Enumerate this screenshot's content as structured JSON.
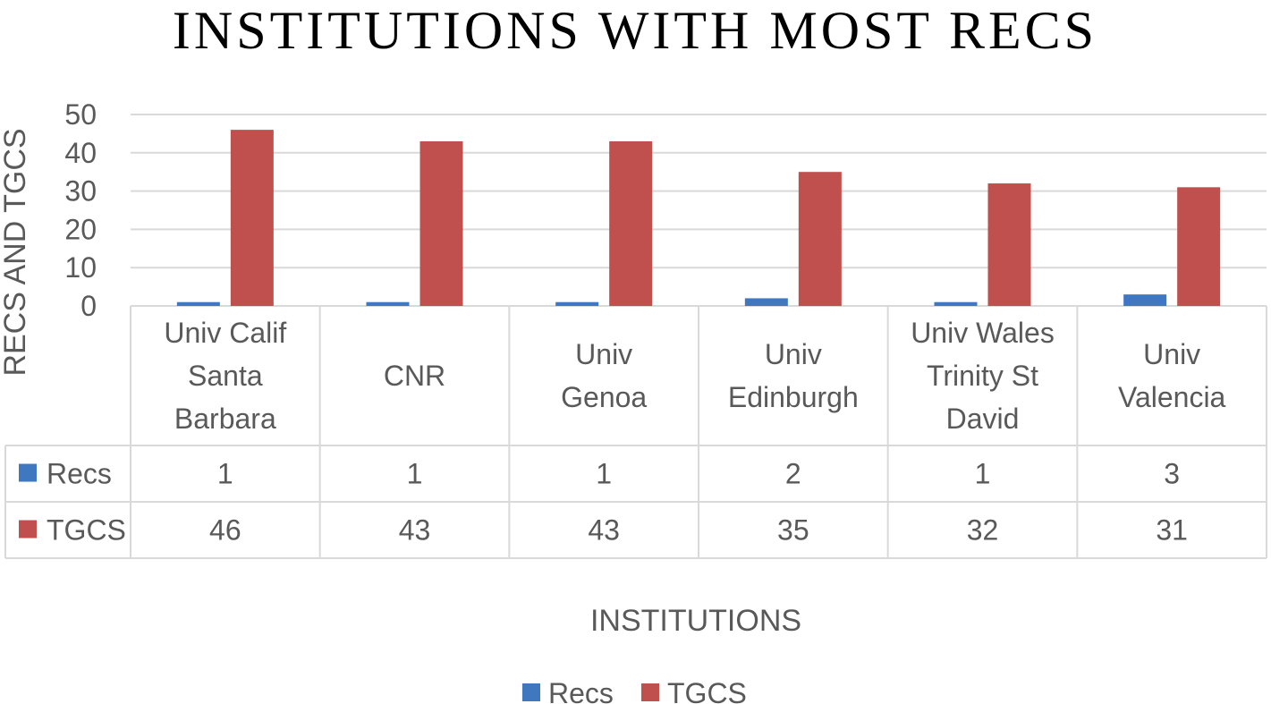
{
  "chart_data": {
    "type": "bar",
    "title": "INSTITUTIONS WITH MOST RECS",
    "xlabel": "INSTITUTIONS",
    "ylabel": "RECS AND TGCS",
    "ylim": [
      0,
      50
    ],
    "yticks": [
      0,
      10,
      20,
      30,
      40,
      50
    ],
    "grid": true,
    "legend_position": "bottom",
    "data_table": true,
    "categories": [
      [
        "Univ Calif",
        "Santa",
        "Barbara"
      ],
      [
        "CNR"
      ],
      [
        "Univ",
        "Genoa"
      ],
      [
        "Univ",
        "Edinburgh"
      ],
      [
        "Univ Wales",
        "Trinity St",
        "David"
      ],
      [
        "Univ",
        "Valencia"
      ]
    ],
    "series": [
      {
        "name": "Recs",
        "color": "#3f78bf",
        "values": [
          1,
          1,
          1,
          2,
          1,
          3
        ]
      },
      {
        "name": "TGCS",
        "color": "#c0504d",
        "values": [
          46,
          43,
          43,
          35,
          32,
          31
        ]
      }
    ]
  }
}
